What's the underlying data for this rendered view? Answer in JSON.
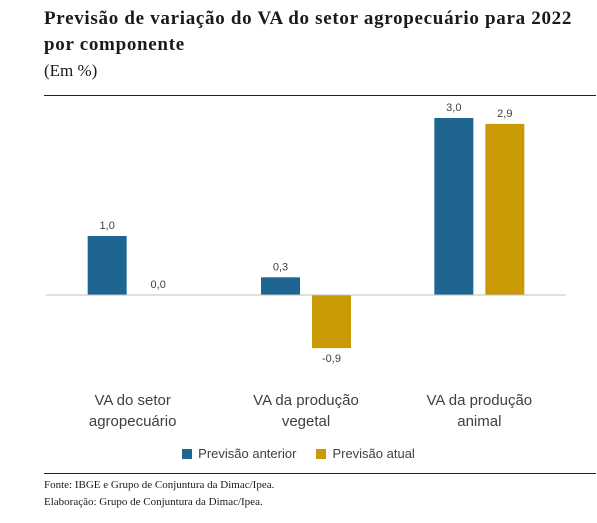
{
  "header": {
    "title": "Previsão de variação do VA do setor agropecuário para 2022 por componente",
    "subtitle": "(Em %)"
  },
  "chart_data": {
    "type": "bar",
    "title": "Previsão de variação do VA do setor agropecuário para 2022 por componente",
    "subtitle": "(Em %)",
    "categories": [
      [
        "VA do setor",
        "agropecuário"
      ],
      [
        "VA da produção",
        "vegetal"
      ],
      [
        "VA da produção",
        "animal"
      ]
    ],
    "series": [
      {
        "name": "Previsão anterior",
        "color": "#1f6591",
        "values": [
          1.0,
          0.3,
          3.0
        ],
        "labels": [
          "1,0",
          "0,3",
          "3,0"
        ]
      },
      {
        "name": "Previsão atual",
        "color": "#c99a06",
        "values": [
          0.0,
          -0.9,
          2.9
        ],
        "labels": [
          "0,0",
          "-0,9",
          "2,9"
        ]
      }
    ],
    "ylim": [
      -1.0,
      3.0
    ],
    "grid": false,
    "legend": "bottom-center",
    "xlabel": "",
    "ylabel": ""
  },
  "footer": {
    "source": "Fonte: IBGE e Grupo de Conjuntura da Dimac/Ipea.",
    "credit": "Elaboração: Grupo de Conjuntura da Dimac/Ipea."
  }
}
